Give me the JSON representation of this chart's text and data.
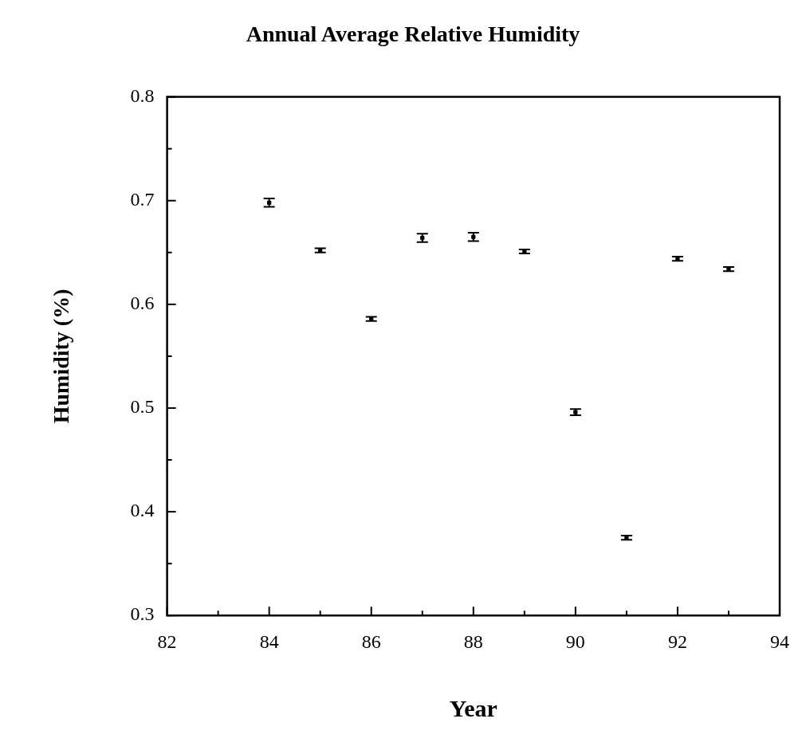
{
  "chart_data": {
    "type": "scatter",
    "title": "Annual Average Relative Humidity",
    "xlabel": "Year",
    "ylabel": "Humidity (%)",
    "x": [
      84,
      85,
      86,
      87,
      88,
      89,
      90,
      91,
      92,
      93
    ],
    "values": [
      0.698,
      0.652,
      0.586,
      0.664,
      0.665,
      0.651,
      0.496,
      0.375,
      0.644,
      0.634
    ],
    "errors": [
      0.004,
      0.002,
      0.002,
      0.004,
      0.004,
      0.002,
      0.003,
      0.002,
      0.002,
      0.002
    ],
    "color": "#000000",
    "marker": "square",
    "grid": false,
    "legend": false,
    "xlim": [
      82,
      94
    ],
    "xticks": [
      82,
      {
        "value": 83,
        "label": null
      },
      84,
      {
        "value": 85,
        "label": null
      },
      86,
      {
        "value": 87,
        "label": null
      },
      88,
      {
        "value": 89,
        "label": null
      },
      90,
      {
        "value": 91,
        "label": null
      },
      92,
      {
        "value": 93,
        "label": null
      },
      94
    ],
    "ylim": [
      0.3,
      0.8
    ],
    "yticks": [
      0.3,
      {
        "value": 0.35,
        "label": null
      },
      0.4,
      {
        "value": 0.45,
        "label": null
      },
      0.5,
      {
        "value": 0.55,
        "label": null
      },
      0.6,
      {
        "value": 0.65,
        "label": null
      },
      0.7,
      {
        "value": 0.75,
        "label": null
      },
      0.8
    ]
  }
}
